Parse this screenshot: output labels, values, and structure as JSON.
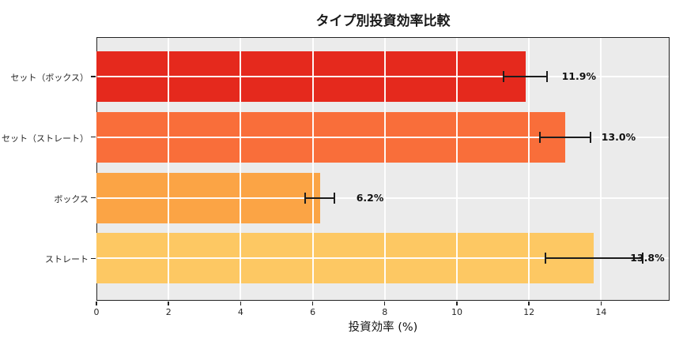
{
  "chart_data": {
    "type": "bar",
    "orientation": "horizontal",
    "title": "タイプ別投資効率比較",
    "xlabel": "投資効率 (%)",
    "ylabel": "",
    "categories": [
      "セット（ボックス）",
      "セット（ストレート）",
      "ボックス",
      "ストレート"
    ],
    "values": [
      11.9,
      13.0,
      6.2,
      13.8
    ],
    "errors": [
      0.6,
      0.7,
      0.4,
      1.35
    ],
    "value_labels": [
      "11.9%",
      "13.0%",
      "6.2%",
      "13.8%"
    ],
    "bar_colors": [
      "#e5291d",
      "#f96e3a",
      "#fba445",
      "#fdc863"
    ],
    "xticks": [
      0,
      2,
      4,
      6,
      8,
      10,
      12,
      14
    ],
    "xtick_labels": [
      "0",
      "2",
      "4",
      "6",
      "8",
      "10",
      "12",
      "14"
    ],
    "xlim": [
      0,
      15.9
    ],
    "grid": true,
    "grid_color": "#ffffff",
    "plot_background": "#ebebeb",
    "figure_background": "#ffffff",
    "error_bar_color": "#1c1c1c",
    "legend": null
  }
}
